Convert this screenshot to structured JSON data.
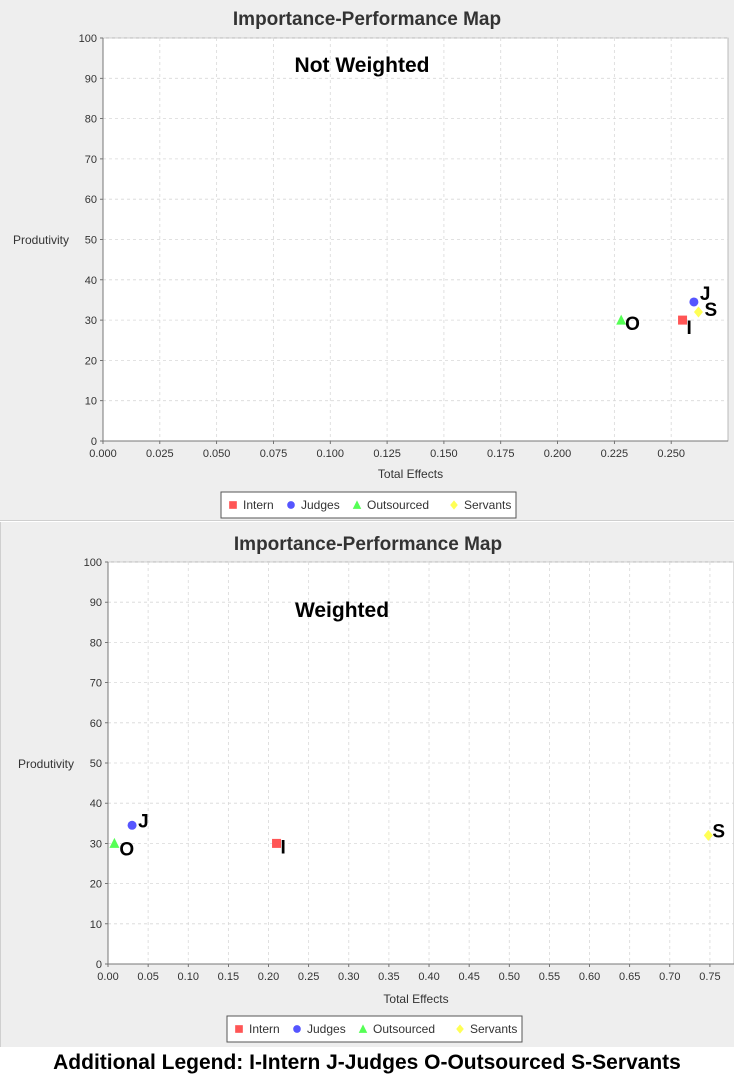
{
  "series_styles": [
    {
      "name": "Intern",
      "shape": "square",
      "color": "#ff5555"
    },
    {
      "name": "Judges",
      "shape": "circle",
      "color": "#5555ff"
    },
    {
      "name": "Outsourced",
      "shape": "triangle",
      "color": "#55ff55"
    },
    {
      "name": "Servants",
      "shape": "diamond",
      "color": "#ffff55"
    }
  ],
  "chart_data": [
    {
      "type": "scatter",
      "title": "Importance-Performance Map",
      "annotation": "Not Weighted",
      "xlabel": "Total Effects",
      "ylabel": "Produtivity",
      "xlim": [
        0,
        0.275
      ],
      "ylim": [
        0,
        100
      ],
      "x_ticks": [
        "0.000",
        "0.025",
        "0.050",
        "0.075",
        "0.100",
        "0.125",
        "0.150",
        "0.175",
        "0.200",
        "0.225",
        "0.250"
      ],
      "y_ticks": [
        "0",
        "10",
        "20",
        "30",
        "40",
        "50",
        "60",
        "70",
        "80",
        "90",
        "100"
      ],
      "grid": true,
      "legend": "bottom",
      "series": [
        {
          "name": "Intern",
          "label": "I",
          "x": [
            0.255
          ],
          "y": [
            30
          ]
        },
        {
          "name": "Judges",
          "label": "J",
          "x": [
            0.26
          ],
          "y": [
            34.5
          ]
        },
        {
          "name": "Outsourced",
          "label": "O",
          "x": [
            0.228
          ],
          "y": [
            30
          ]
        },
        {
          "name": "Servants",
          "label": "S",
          "x": [
            0.262
          ],
          "y": [
            32
          ]
        }
      ]
    },
    {
      "type": "scatter",
      "title": "Importance-Performance Map",
      "annotation": "Weighted",
      "xlabel": "Total Effects",
      "ylabel": "Produtivity",
      "xlim": [
        0,
        0.78
      ],
      "ylim": [
        0,
        100
      ],
      "x_ticks": [
        "0.00",
        "0.05",
        "0.10",
        "0.15",
        "0.20",
        "0.25",
        "0.30",
        "0.35",
        "0.40",
        "0.45",
        "0.50",
        "0.55",
        "0.60",
        "0.65",
        "0.70",
        "0.75"
      ],
      "y_ticks": [
        "0",
        "10",
        "20",
        "30",
        "40",
        "50",
        "60",
        "70",
        "80",
        "90",
        "100"
      ],
      "grid": true,
      "legend": "bottom",
      "series": [
        {
          "name": "Intern",
          "label": "I",
          "x": [
            0.21
          ],
          "y": [
            30
          ]
        },
        {
          "name": "Judges",
          "label": "J",
          "x": [
            0.03
          ],
          "y": [
            34.5
          ]
        },
        {
          "name": "Outsourced",
          "label": "O",
          "x": [
            0.008
          ],
          "y": [
            30
          ]
        },
        {
          "name": "Servants",
          "label": "S",
          "x": [
            0.748
          ],
          "y": [
            32
          ]
        }
      ]
    }
  ],
  "footer": "Additional Legend:  I-Intern J-Judges O-Outsourced S-Servants"
}
